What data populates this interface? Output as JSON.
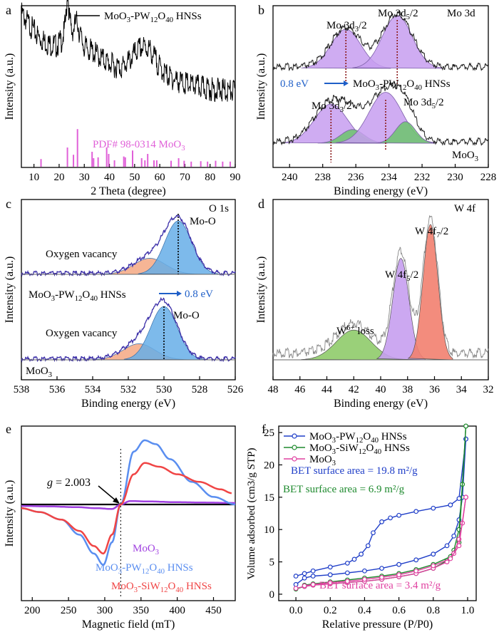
{
  "chart_data": [
    {
      "panel": "a",
      "type": "line",
      "xlabel": "2 Theta (degree)",
      "ylabel": "Intensity (a.u.)",
      "xlim": [
        5,
        90
      ],
      "xticks": [
        10,
        20,
        30,
        40,
        50,
        60,
        70,
        80,
        90
      ],
      "series": [
        {
          "name": "MoO3-PW12O40 HNSs",
          "color": "#000000",
          "x": [
            5,
            8,
            12,
            16,
            19,
            21,
            22,
            22.8,
            23.4,
            24,
            25,
            26.5,
            27.3,
            28,
            30,
            33,
            36,
            39,
            42,
            45,
            48,
            50,
            52,
            54,
            56,
            58,
            60,
            63,
            66,
            70,
            75,
            80,
            85,
            90
          ],
          "y": [
            80,
            72,
            62,
            57,
            56,
            60,
            66,
            78,
            100,
            78,
            66,
            72,
            75,
            66,
            55,
            52,
            48,
            44,
            41,
            40,
            45,
            50,
            54,
            55,
            53,
            47,
            40,
            34,
            31,
            28,
            26,
            24,
            23,
            22
          ]
        }
      ],
      "reference": {
        "label": "PDF# 98-0314 MoO3",
        "color": "#e060d8",
        "positions": [
          12.8,
          23.3,
          25.7,
          27.3,
          33.1,
          33.7,
          35.5,
          38.9,
          39.7,
          42.0,
          45.7,
          46.3,
          49.2,
          52.8,
          54.1,
          55.2,
          57.7,
          58.8,
          64.5,
          67.5,
          69.7,
          72.5,
          76.3,
          79.0,
          82.2,
          85.0,
          88.0
        ],
        "heights": [
          0.18,
          0.45,
          0.28,
          0.88,
          0.35,
          0.2,
          0.22,
          0.45,
          0.3,
          0.15,
          0.24,
          0.22,
          0.38,
          0.2,
          0.15,
          0.3,
          0.15,
          0.15,
          0.14,
          0.2,
          0.14,
          0.12,
          0.13,
          0.12,
          0.14,
          0.12,
          0.12
        ]
      }
    },
    {
      "panel": "b",
      "type": "line",
      "xlabel": "Binding energy (eV)",
      "ylabel": "Intensity (a.u.)",
      "xlim": [
        241,
        228
      ],
      "xticks": [
        240,
        238,
        236,
        234,
        232,
        230,
        228
      ],
      "corner_label": "Mo 3d",
      "top_peaks": [
        {
          "label": "Mo 3d3/2",
          "center": 236.6,
          "width": 0.9,
          "height": 1.0
        },
        {
          "label": "Mo 3d5/2",
          "center": 233.5,
          "width": 0.9,
          "height": 1.35
        }
      ],
      "bottom_peaks": [
        {
          "label": "Mo 3d3/2",
          "center": 237.5,
          "width": 1.0,
          "height": 1.0,
          "color": "#c79ef0"
        },
        {
          "label": "",
          "center": 236.2,
          "width": 0.7,
          "height": 0.35,
          "color": "#6cc46c"
        },
        {
          "label": "Mo 3d5/2",
          "center": 234.2,
          "width": 1.0,
          "height": 1.3,
          "color": "#c79ef0"
        },
        {
          "label": "",
          "center": 233.0,
          "width": 0.6,
          "height": 0.55,
          "color": "#6cc46c"
        }
      ],
      "shift_label": "0.8 eV",
      "sample_label": "MoO3-PW12O40 HNSs",
      "ref_label": "MoO3"
    },
    {
      "panel": "c",
      "type": "line",
      "xlabel": "Binding energy (eV)",
      "ylabel": "Intensity (a.u.)",
      "xlim": [
        538,
        526
      ],
      "xticks": [
        538,
        536,
        534,
        532,
        530,
        528,
        526
      ],
      "corner_label": "O 1s",
      "top_peaks": [
        {
          "label": "Oxygen vacancy",
          "center": 530.8,
          "width": 0.9,
          "height": 0.3,
          "color": "#f5a882"
        },
        {
          "label": "Mo-O",
          "center": 529.2,
          "width": 0.75,
          "height": 1.0,
          "color": "#66aee8"
        }
      ],
      "bottom_peaks": [
        {
          "label": "Oxygen vacancy",
          "center": 531.4,
          "width": 0.9,
          "height": 0.3,
          "color": "#f5a882"
        },
        {
          "label": "Mo-O",
          "center": 530.0,
          "width": 0.75,
          "height": 1.0,
          "color": "#66aee8"
        }
      ],
      "shift_label": "0.8 eV",
      "sample_label": "MoO3-PW12O40 HNSs",
      "ref_label": "MoO3"
    },
    {
      "panel": "d",
      "type": "line",
      "xlabel": "Binding energy (eV)",
      "ylabel": "Intensity (a.u.)",
      "xlim": [
        48,
        32
      ],
      "xticks": [
        48,
        46,
        44,
        42,
        40,
        38,
        36,
        34,
        32
      ],
      "corner_label": "W 4f",
      "peaks": [
        {
          "label": "W6+ loss",
          "center": 42.0,
          "width": 1.3,
          "height": 0.22,
          "color": "#8fcb6a"
        },
        {
          "label": "W 4f5/2",
          "center": 38.5,
          "width": 0.6,
          "height": 0.75,
          "color": "#c79ef0"
        },
        {
          "label": "W 4f7/2",
          "center": 36.3,
          "width": 0.55,
          "height": 1.0,
          "color": "#f2806f"
        }
      ]
    },
    {
      "panel": "e",
      "type": "line",
      "xlabel": "Magnetic field (mT)",
      "ylabel": "Intensity (a.u.)",
      "xlim": [
        185,
        480
      ],
      "xticks": [
        200,
        250,
        300,
        350,
        400,
        450
      ],
      "annotation": "g = 2.003",
      "annotation_x": 322,
      "series": [
        {
          "name": "MoO3",
          "color": "#a040e0",
          "x": [
            185,
            220,
            260,
            290,
            310,
            322,
            335,
            360,
            400,
            440,
            480
          ],
          "y": [
            -0.4,
            -0.5,
            -0.7,
            -1.0,
            -1.2,
            0,
            0.9,
            0.8,
            0.6,
            0.5,
            0.4
          ]
        },
        {
          "name": "MoO3-PW12O40 HNSs",
          "color": "#5a8ef0",
          "x": [
            185,
            210,
            240,
            265,
            285,
            298,
            310,
            322,
            340,
            355,
            370,
            390,
            420,
            450,
            480
          ],
          "y": [
            -1,
            -2,
            -4,
            -8,
            -13,
            -16,
            -10,
            0,
            14,
            17,
            16,
            12,
            6,
            2,
            0
          ]
        },
        {
          "name": "MoO3-SiW12O40 HNSs",
          "color": "#f04545",
          "x": [
            185,
            210,
            240,
            265,
            285,
            298,
            310,
            322,
            340,
            355,
            375,
            400,
            430,
            460,
            475
          ],
          "y": [
            -1,
            -2,
            -4,
            -7,
            -11,
            -13,
            -8,
            0,
            8,
            11,
            10,
            8,
            6,
            4,
            3
          ]
        }
      ]
    },
    {
      "panel": "f",
      "type": "scatter",
      "xlabel": "Relative pressure (P/P0)",
      "ylabel": "Volume adsorbed (cm3/g STP)",
      "xlim": [
        -0.1,
        1.05
      ],
      "ylim": [
        -1,
        26
      ],
      "xticks": [
        0.0,
        0.2,
        0.4,
        0.6,
        0.8,
        1.0
      ],
      "yticks": [
        0,
        5,
        10,
        15,
        20,
        25
      ],
      "series": [
        {
          "name": "MoO3-PW12O40 HNSs",
          "color": "#1f3ec8",
          "ads_x": [
            0.0,
            0.05,
            0.1,
            0.2,
            0.3,
            0.4,
            0.5,
            0.6,
            0.7,
            0.8,
            0.88,
            0.92,
            0.95,
            0.97,
            0.99
          ],
          "ads_y": [
            1.5,
            2.5,
            2.8,
            3.0,
            3.3,
            3.6,
            4.0,
            4.6,
            5.3,
            6.2,
            7.5,
            9.0,
            11.5,
            15.0,
            24.0
          ],
          "des_x": [
            0.99,
            0.95,
            0.9,
            0.8,
            0.7,
            0.6,
            0.55,
            0.5,
            0.45,
            0.42,
            0.38,
            0.34,
            0.3,
            0.2,
            0.1,
            0.05,
            0.0
          ],
          "des_y": [
            24.0,
            14.8,
            13.8,
            13.3,
            12.8,
            12.2,
            11.8,
            11.2,
            9.5,
            7.5,
            6.2,
            5.4,
            4.8,
            4.2,
            3.6,
            3.2,
            2.8
          ]
        },
        {
          "name": "MoO3-SiW12O40 HNSs",
          "color": "#1e8a2e",
          "ads_x": [
            0.0,
            0.05,
            0.1,
            0.2,
            0.3,
            0.4,
            0.5,
            0.6,
            0.7,
            0.8,
            0.88,
            0.92,
            0.95,
            0.97,
            0.99
          ],
          "ads_y": [
            0.8,
            1.2,
            1.4,
            1.6,
            1.8,
            2.0,
            2.3,
            2.7,
            3.2,
            4.0,
            5.2,
            6.8,
            10.0,
            17.0,
            26.0
          ],
          "des_x": [
            0.99,
            0.95,
            0.9,
            0.8,
            0.7,
            0.6,
            0.5,
            0.4,
            0.3,
            0.2,
            0.1,
            0.05
          ],
          "des_y": [
            26.0,
            8.0,
            5.8,
            4.6,
            3.8,
            3.2,
            2.8,
            2.5,
            2.2,
            1.9,
            1.6,
            1.4
          ]
        },
        {
          "name": "MoO3",
          "color": "#e040a0",
          "ads_x": [
            0.0,
            0.05,
            0.1,
            0.2,
            0.3,
            0.4,
            0.5,
            0.6,
            0.7,
            0.8,
            0.88,
            0.92,
            0.95,
            0.97,
            0.99
          ],
          "ads_y": [
            0.9,
            1.2,
            1.4,
            1.6,
            1.8,
            2.0,
            2.3,
            2.7,
            3.2,
            4.0,
            5.0,
            6.3,
            8.5,
            11.0,
            15.0
          ],
          "des_x": [
            0.99,
            0.95,
            0.9,
            0.8,
            0.7,
            0.6,
            0.5,
            0.4,
            0.3,
            0.2,
            0.1,
            0.05
          ],
          "des_y": [
            15.0,
            7.5,
            5.5,
            4.4,
            3.6,
            3.0,
            2.6,
            2.3,
            2.0,
            1.8,
            1.5,
            1.3
          ]
        }
      ],
      "bet_labels": [
        {
          "text": "BET surface area = 19.8 m²/g",
          "color": "#1f3ec8"
        },
        {
          "text": "BET surface area = 6.9 m²/g",
          "color": "#1e8a2e"
        },
        {
          "text": "BET surface area = 3.4 m²/g",
          "color": "#e040a0"
        }
      ]
    }
  ]
}
